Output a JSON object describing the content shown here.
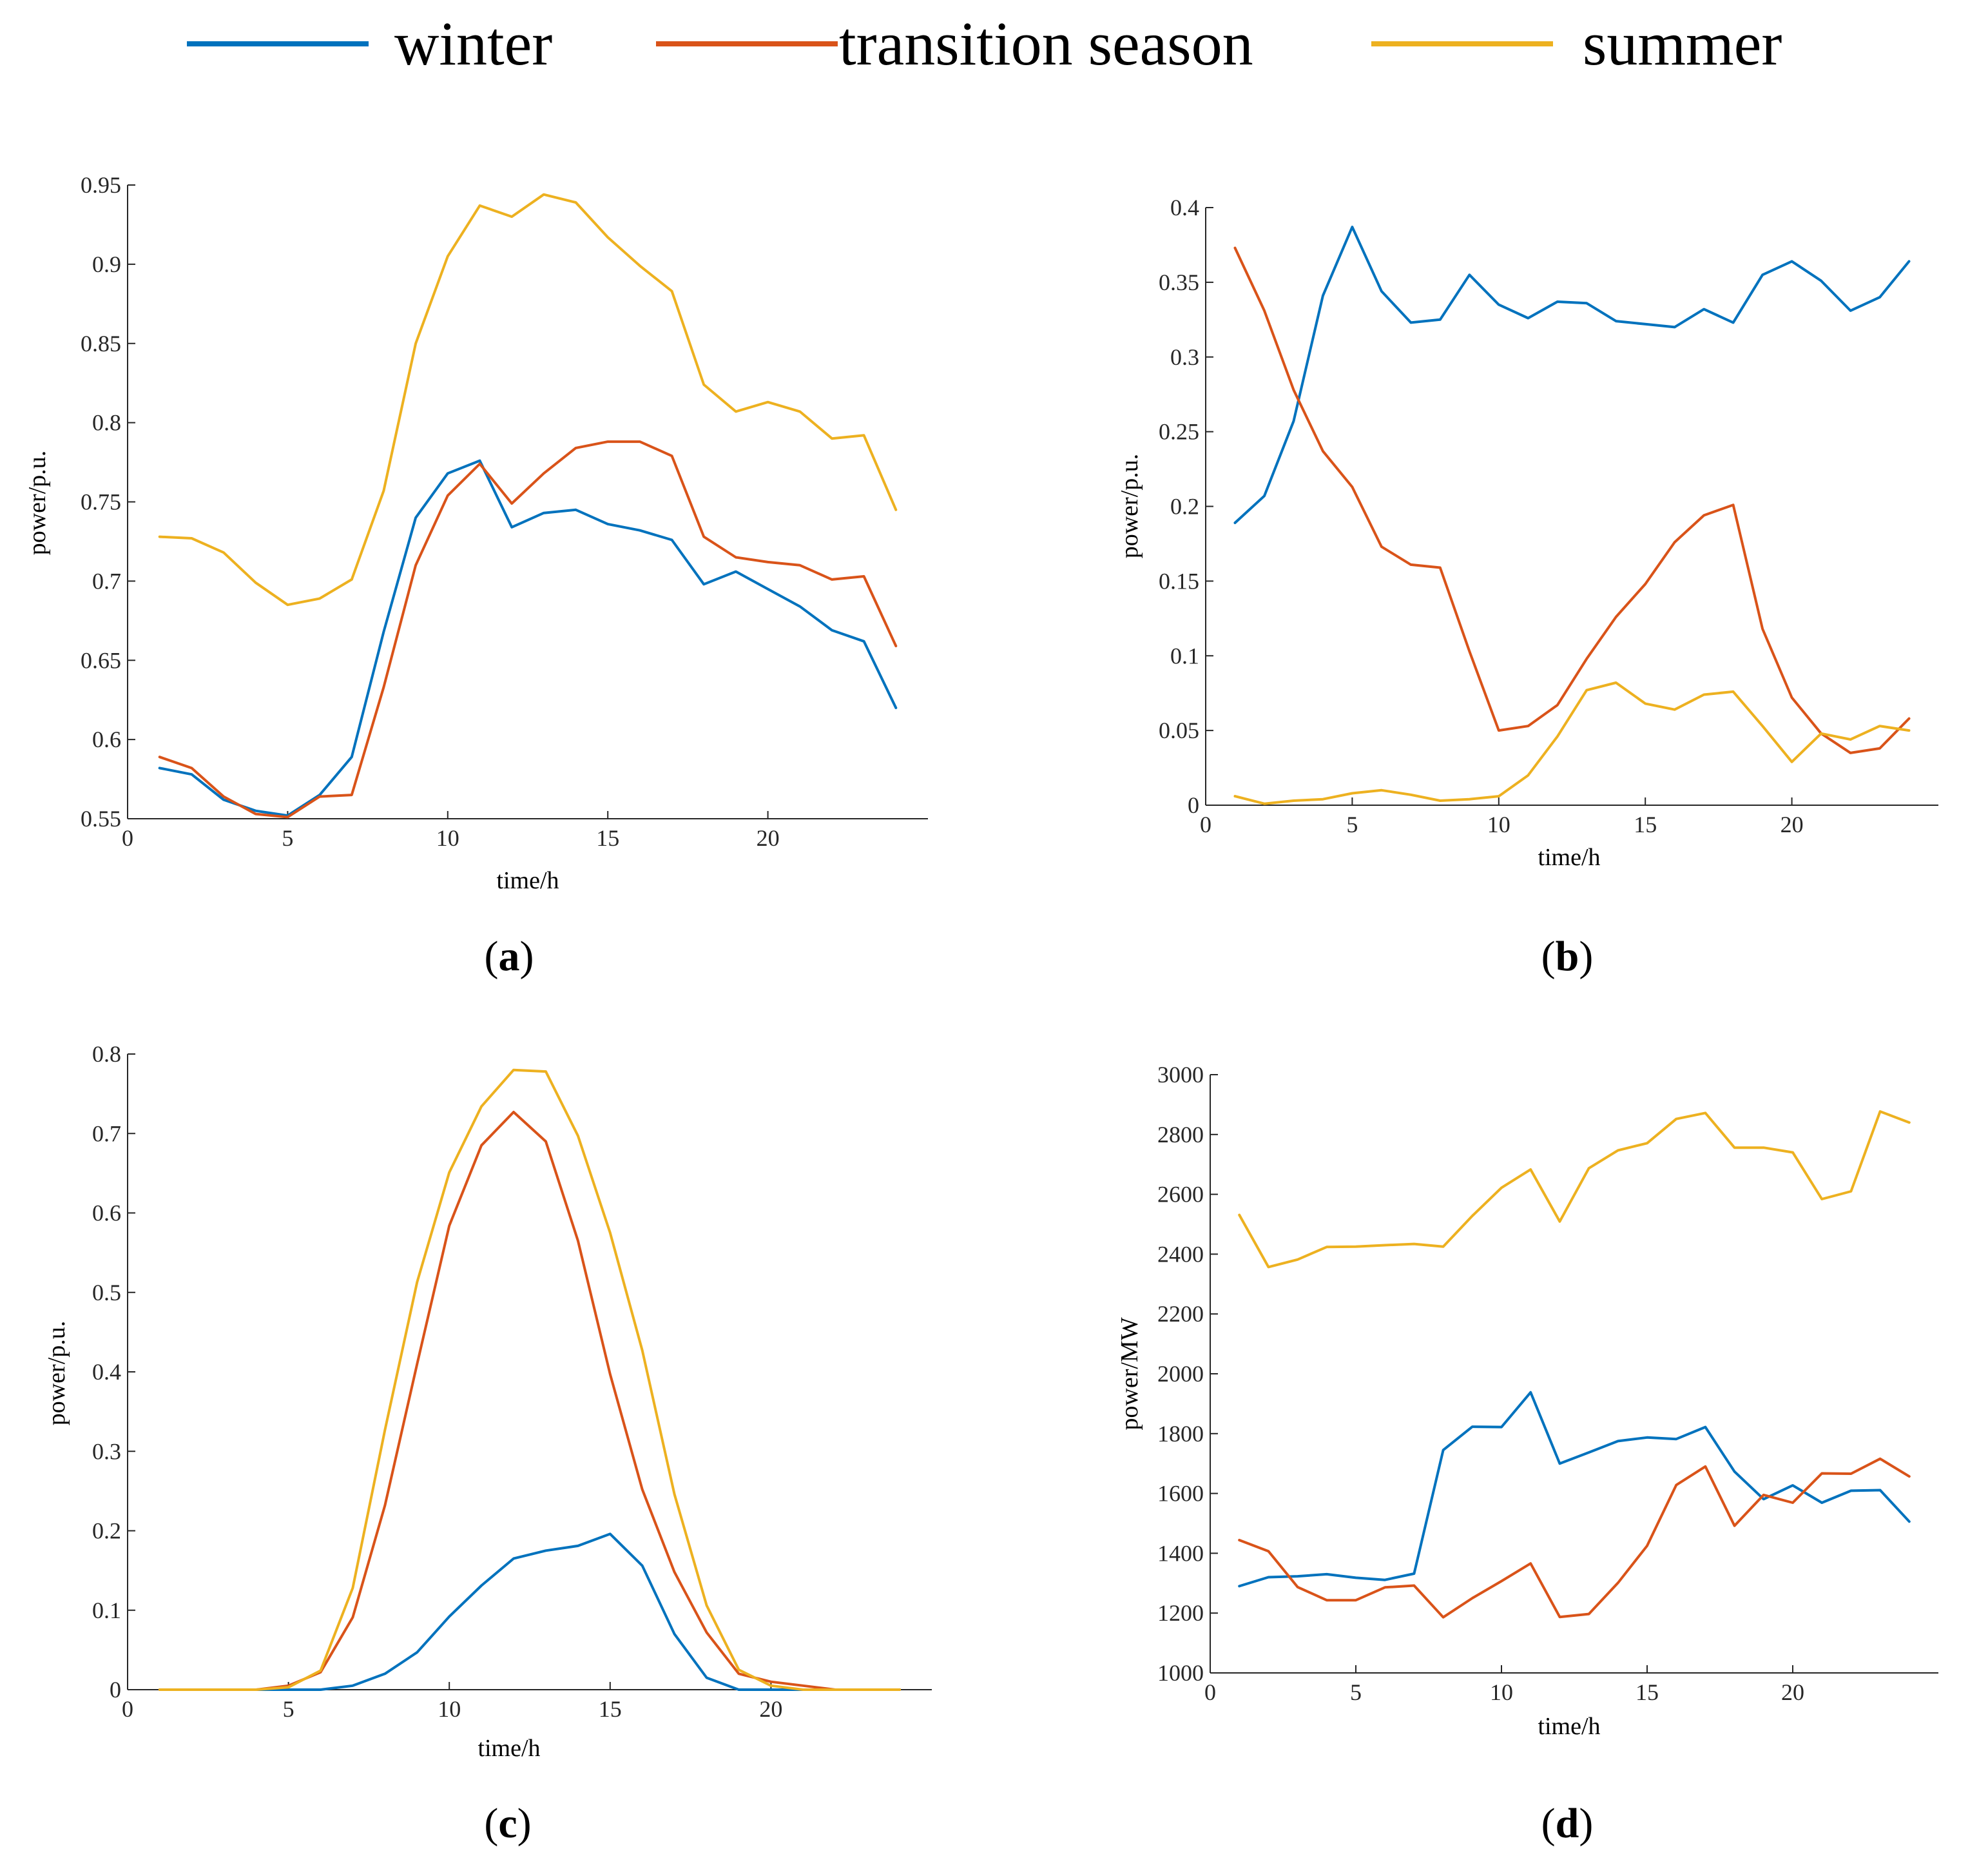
{
  "legend": [
    {
      "name": "winter",
      "color": "#0072BD"
    },
    {
      "name": "transition season",
      "color": "#D95319"
    },
    {
      "name": "summer",
      "color": "#EDB120"
    }
  ],
  "chart_data": [
    {
      "id": "a",
      "type": "line",
      "panel_label": "a",
      "xlabel": "time/h",
      "ylabel": "power/p.u.",
      "xlim": [
        0,
        25
      ],
      "ylim": [
        0.55,
        0.95
      ],
      "xticks": [
        0,
        5,
        10,
        15,
        20
      ],
      "yticks": [
        0.55,
        0.6,
        0.65,
        0.7,
        0.75,
        0.8,
        0.85,
        0.9,
        0.95
      ],
      "ytick_labels": [
        "0.55",
        "0.6",
        "0.65",
        "0.7",
        "0.75",
        "0.8",
        "0.85",
        "0.9",
        "0.95"
      ],
      "x": [
        1,
        2,
        3,
        4,
        5,
        6,
        7,
        8,
        9,
        10,
        11,
        12,
        13,
        14,
        15,
        16,
        17,
        18,
        19,
        20,
        21,
        22,
        23,
        24
      ],
      "series": [
        {
          "name": "winter",
          "values": [
            0.582,
            0.578,
            0.562,
            0.555,
            0.552,
            0.565,
            0.589,
            0.668,
            0.74,
            0.768,
            0.776,
            0.734,
            0.743,
            0.745,
            0.736,
            0.732,
            0.726,
            0.698,
            0.706,
            0.695,
            0.684,
            0.669,
            0.662,
            0.62
          ]
        },
        {
          "name": "transition season",
          "values": [
            0.589,
            0.582,
            0.564,
            0.553,
            0.551,
            0.564,
            0.565,
            0.633,
            0.71,
            0.754,
            0.774,
            0.749,
            0.768,
            0.784,
            0.788,
            0.788,
            0.779,
            0.728,
            0.715,
            0.712,
            0.71,
            0.701,
            0.703,
            0.659
          ]
        },
        {
          "name": "summer",
          "values": [
            0.728,
            0.727,
            0.718,
            0.699,
            0.685,
            0.689,
            0.701,
            0.757,
            0.85,
            0.905,
            0.937,
            0.93,
            0.944,
            0.939,
            0.917,
            0.899,
            0.883,
            0.824,
            0.807,
            0.813,
            0.807,
            0.79,
            0.792,
            0.745
          ]
        }
      ]
    },
    {
      "id": "b",
      "type": "line",
      "panel_label": "b",
      "xlabel": "time/h",
      "ylabel": "power/p.u.",
      "xlim": [
        0,
        25
      ],
      "ylim": [
        0,
        0.4
      ],
      "xticks": [
        0,
        5,
        10,
        15,
        20
      ],
      "yticks": [
        0,
        0.05,
        0.1,
        0.15,
        0.2,
        0.25,
        0.3,
        0.35,
        0.4
      ],
      "ytick_labels": [
        "0",
        "0.05",
        "0.1",
        "0.15",
        "0.2",
        "0.25",
        "0.3",
        "0.35",
        "0.4"
      ],
      "x": [
        1,
        2,
        3,
        4,
        5,
        6,
        7,
        8,
        9,
        10,
        11,
        12,
        13,
        14,
        15,
        16,
        17,
        18,
        19,
        20,
        21,
        22,
        23,
        24
      ],
      "series": [
        {
          "name": "winter",
          "values": [
            0.189,
            0.207,
            0.257,
            0.341,
            0.387,
            0.344,
            0.323,
            0.325,
            0.355,
            0.335,
            0.326,
            0.337,
            0.336,
            0.324,
            0.322,
            0.32,
            0.332,
            0.323,
            0.355,
            0.364,
            0.351,
            0.331,
            0.34,
            0.364
          ]
        },
        {
          "name": "transition season",
          "values": [
            0.373,
            0.331,
            0.278,
            0.237,
            0.213,
            0.173,
            0.161,
            0.159,
            0.103,
            0.05,
            0.053,
            0.067,
            0.098,
            0.126,
            0.148,
            0.176,
            0.194,
            0.201,
            0.118,
            0.072,
            0.048,
            0.035,
            0.038,
            0.058
          ]
        },
        {
          "name": "summer",
          "values": [
            0.006,
            0.001,
            0.003,
            0.004,
            0.008,
            0.01,
            0.007,
            0.003,
            0.004,
            0.006,
            0.02,
            0.046,
            0.077,
            0.082,
            0.068,
            0.064,
            0.074,
            0.076,
            0.053,
            0.029,
            0.048,
            0.044,
            0.053,
            0.05
          ]
        }
      ]
    },
    {
      "id": "c",
      "type": "line",
      "panel_label": "c",
      "xlabel": "time/h",
      "ylabel": "power/p.u.",
      "xlim": [
        0,
        25
      ],
      "ylim": [
        0,
        0.8
      ],
      "xticks": [
        0,
        5,
        10,
        15,
        20
      ],
      "yticks": [
        0,
        0.1,
        0.2,
        0.3,
        0.4,
        0.5,
        0.6,
        0.7,
        0.8
      ],
      "ytick_labels": [
        "0",
        "0.1",
        "0.2",
        "0.3",
        "0.4",
        "0.5",
        "0.6",
        "0.7",
        "0.8"
      ],
      "x": [
        1,
        2,
        3,
        4,
        5,
        6,
        7,
        8,
        9,
        10,
        11,
        12,
        13,
        14,
        15,
        16,
        17,
        18,
        19,
        20,
        21,
        22,
        23,
        24
      ],
      "series": [
        {
          "name": "winter",
          "values": [
            0,
            0,
            0,
            0,
            0,
            0,
            0.005,
            0.02,
            0.047,
            0.092,
            0.131,
            0.165,
            0.175,
            0.181,
            0.196,
            0.156,
            0.07,
            0.015,
            0,
            0,
            0,
            0,
            0,
            0
          ]
        },
        {
          "name": "transition season",
          "values": [
            0,
            0,
            0,
            0,
            0.005,
            0.022,
            0.091,
            0.232,
            0.41,
            0.584,
            0.685,
            0.727,
            0.69,
            0.565,
            0.397,
            0.252,
            0.148,
            0.072,
            0.02,
            0.01,
            0.005,
            0,
            0,
            0
          ]
        },
        {
          "name": "summer",
          "values": [
            0,
            0,
            0,
            0,
            0.003,
            0.024,
            0.128,
            0.327,
            0.513,
            0.651,
            0.734,
            0.78,
            0.778,
            0.697,
            0.575,
            0.427,
            0.246,
            0.106,
            0.025,
            0.005,
            0,
            0,
            0,
            0
          ]
        }
      ]
    },
    {
      "id": "d",
      "type": "line",
      "panel_label": "d",
      "xlabel": "time/h",
      "ylabel": "power/MW",
      "xlim": [
        0,
        25
      ],
      "ylim": [
        1000,
        3000
      ],
      "xticks": [
        0,
        5,
        10,
        15,
        20
      ],
      "yticks": [
        1000,
        1200,
        1400,
        1600,
        1800,
        2000,
        2200,
        2400,
        2600,
        2800,
        3000
      ],
      "ytick_labels": [
        "1000",
        "1200",
        "1400",
        "1600",
        "1800",
        "2000",
        "2200",
        "2400",
        "2600",
        "2800",
        "3000"
      ],
      "x": [
        1,
        2,
        3,
        4,
        5,
        6,
        7,
        8,
        9,
        10,
        11,
        12,
        13,
        14,
        15,
        16,
        17,
        18,
        19,
        20,
        21,
        22,
        23,
        24
      ],
      "series": [
        {
          "name": "winter",
          "values": [
            1290,
            1320,
            1323,
            1330,
            1318,
            1311,
            1332,
            1745,
            1823,
            1822,
            1938,
            1700,
            1737,
            1775,
            1787,
            1782,
            1822,
            1673,
            1581,
            1627,
            1569,
            1609,
            1611,
            1506
          ]
        },
        {
          "name": "transition season",
          "values": [
            1444,
            1407,
            1287,
            1243,
            1243,
            1286,
            1292,
            1186,
            1250,
            1307,
            1366,
            1187,
            1197,
            1301,
            1425,
            1628,
            1690,
            1492,
            1595,
            1569,
            1667,
            1666,
            1716,
            1657
          ]
        },
        {
          "name": "summer",
          "values": [
            2531,
            2357,
            2382,
            2424,
            2425,
            2430,
            2434,
            2425,
            2528,
            2622,
            2683,
            2509,
            2687,
            2747,
            2771,
            2852,
            2872,
            2756,
            2756,
            2740,
            2584,
            2610,
            2877,
            2840
          ]
        }
      ]
    }
  ]
}
